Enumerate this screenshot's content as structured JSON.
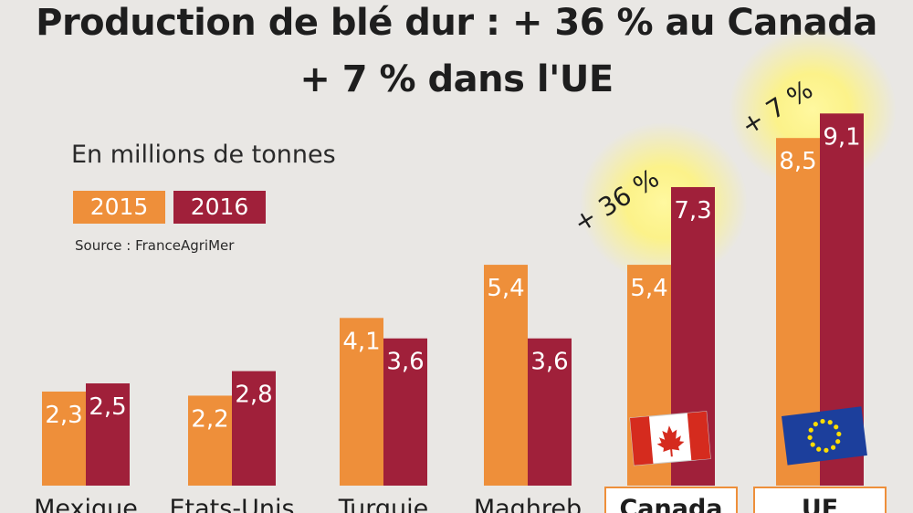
{
  "chart_data": {
    "type": "bar",
    "title": "Production de blé dur : + 36 %  au Canada",
    "title_line2": "+ 7 % dans l'UE",
    "subtitle": "En millions de tonnes",
    "source": "Source : FranceAgriMer",
    "categories": [
      "Mexique",
      "Etats-Unis",
      "Turquie",
      "Maghreb",
      "Canada",
      "UE"
    ],
    "series": [
      {
        "name": "2015",
        "color": "#ee8f3a",
        "values": [
          2.3,
          2.2,
          4.1,
          5.4,
          5.4,
          8.5
        ],
        "labels": [
          "2,3",
          "2,2",
          "4,1",
          "5,4",
          "5,4",
          "8,5"
        ]
      },
      {
        "name": "2016",
        "color": "#a0203a",
        "values": [
          2.5,
          2.8,
          3.6,
          3.6,
          7.3,
          9.1
        ],
        "labels": [
          "2,5",
          "2,8",
          "3,6",
          "3,6",
          "7,3",
          "9,1"
        ]
      }
    ],
    "annotations": [
      {
        "category": "Canada",
        "text": "+ 36 %"
      },
      {
        "category": "UE",
        "text": "+ 7 %"
      }
    ],
    "highlighted_categories": [
      "Canada",
      "UE"
    ],
    "flags": {
      "Canada": "canada-flag-icon",
      "UE": "eu-flag-icon"
    },
    "legend_placement": "top-left",
    "grid": false,
    "ylim": [
      0,
      10
    ]
  }
}
